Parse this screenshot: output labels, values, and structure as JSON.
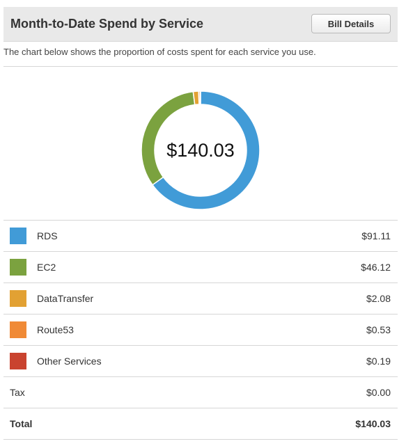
{
  "header": {
    "title": "Month-to-Date Spend by Service",
    "bill_details_label": "Bill Details"
  },
  "description": "The chart below shows the proportion of costs spent for each service you use.",
  "donut": {
    "total_label": "$140.03"
  },
  "chart_data": {
    "type": "pie",
    "categories": [
      "RDS",
      "EC2",
      "DataTransfer",
      "Route53",
      "Other Services"
    ],
    "values": [
      91.11,
      46.12,
      2.08,
      0.53,
      0.19
    ],
    "colors": [
      "#419bd7",
      "#7ba23f",
      "#e2a133",
      "#f08a36",
      "#c9432f"
    ],
    "center_text": "$140.03"
  },
  "services": [
    {
      "name": "RDS",
      "amount": "$91.11",
      "color": "#419bd7"
    },
    {
      "name": "EC2",
      "amount": "$46.12",
      "color": "#7ba23f"
    },
    {
      "name": "DataTransfer",
      "amount": "$2.08",
      "color": "#e2a133"
    },
    {
      "name": "Route53",
      "amount": "$0.53",
      "color": "#f08a36"
    },
    {
      "name": "Other Services",
      "amount": "$0.19",
      "color": "#c9432f"
    }
  ],
  "tax": {
    "label": "Tax",
    "amount": "$0.00"
  },
  "total": {
    "label": "Total",
    "amount": "$140.03"
  }
}
